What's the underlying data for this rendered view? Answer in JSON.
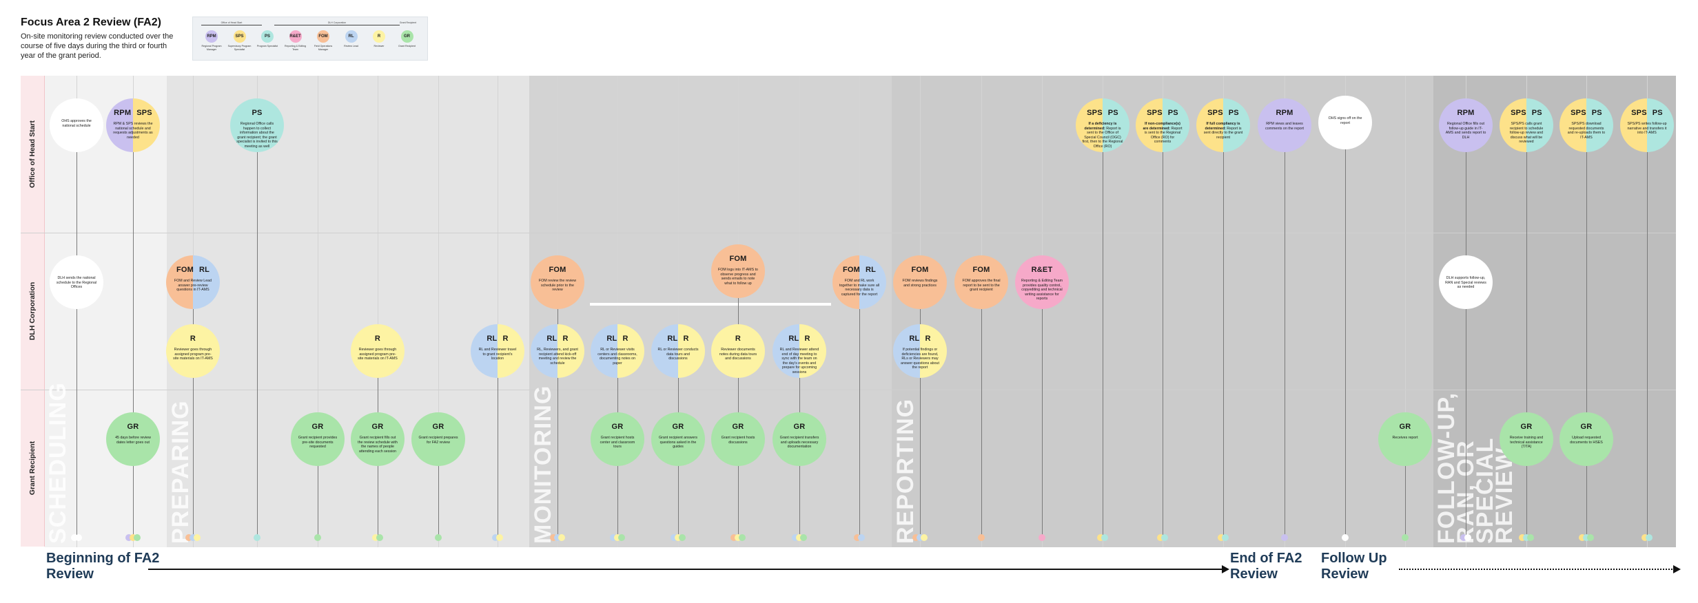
{
  "header": {
    "title": "Focus Area 2 Review (FA2)",
    "subtitle": "On-site monitoring review conducted over the course of five days during the third or fourth year of the grant period."
  },
  "legend": {
    "groups": [
      "Office of Head Start",
      "DLH Corporation",
      "Grant Recipient"
    ],
    "items": [
      {
        "tag": "RPM",
        "color": "#c9c0ef",
        "label": "Regional Program Manager"
      },
      {
        "tag": "SPS",
        "color": "#fde28a",
        "label": "Supervisory Program Specialist"
      },
      {
        "tag": "PS",
        "color": "#aee6df",
        "label": "Program Specialist"
      },
      {
        "tag": "R&ET",
        "color": "#f6a9c9",
        "label": "Reporting & Editing Team"
      },
      {
        "tag": "FOM",
        "color": "#f8bf96",
        "label": "Field Operations Manager"
      },
      {
        "tag": "RL",
        "color": "#bcd4f1",
        "label": "Review Lead"
      },
      {
        "tag": "R",
        "color": "#fdf3a3",
        "label": "Reviewer"
      },
      {
        "tag": "GR",
        "color": "#a9e4a9",
        "label": "Grant Recipient"
      }
    ]
  },
  "colors": {
    "RPM": "#c9c0ef",
    "SPS": "#fde28a",
    "PS": "#aee6df",
    "R&ET": "#f6a9c9",
    "FOM": "#f8bf96",
    "RL": "#bcd4f1",
    "R": "#fdf3a3",
    "GR": "#a9e4a9",
    "WHITE": "#ffffff"
  },
  "lanes": [
    "Office of Head Start",
    "DLH Corporation",
    "Grant Recipient"
  ],
  "phases": [
    {
      "label": "SCHEDULING",
      "bg": "#f2f2f2"
    },
    {
      "label": "PREPARING",
      "bg": "#e4e4e4"
    },
    {
      "label": "MONITORING",
      "bg": "#d3d3d3"
    },
    {
      "label": "REPORTING",
      "bg": "#cbcbcb"
    },
    {
      "label": "FOLLOW-UP, RAN, OR SPECIAL REVIEW",
      "bg": "#bdbdbd"
    }
  ],
  "nodes": [
    {
      "lane": 0,
      "col": 0,
      "roles": [],
      "fill": "WHITE",
      "text": "OHS approves the national schedule"
    },
    {
      "lane": 1,
      "col": 0,
      "roles": [],
      "fill": "WHITE",
      "text": "DLH sends the national schedule to the Regional Offices"
    },
    {
      "lane": 0,
      "col": 1,
      "roles": [
        "RPM",
        "SPS"
      ],
      "text": "RPM & SPS reviews the national schedule and requests adjustments as needed"
    },
    {
      "lane": 2,
      "col": 1,
      "roles": [
        "GR"
      ],
      "text": "45 days before review dates letter goes out"
    },
    {
      "lane": 1,
      "col": 2,
      "roles": [
        "FOM",
        "RL"
      ],
      "text": "FOM and Review Lead answer pre-review questions in IT-AMS"
    },
    {
      "lane": 1.5,
      "col": 2,
      "roles": [
        "R"
      ],
      "text": "Reviewer goes through assigned program pre-site materials on IT-AMS"
    },
    {
      "lane": 0,
      "col": 3,
      "roles": [
        "PS"
      ],
      "text": "Regional Office calls happen to collect information about the grant recipient; the grant specialist is invited to this meeting as well"
    },
    {
      "lane": 2,
      "col": 4,
      "roles": [
        "GR"
      ],
      "text": "Grant recipient provides pre-site documents requested"
    },
    {
      "lane": 1.5,
      "col": 5,
      "roles": [
        "R"
      ],
      "text": "Reviewer goes through assigned program pre-site materials on IT-AMS"
    },
    {
      "lane": 2,
      "col": 5,
      "roles": [
        "GR"
      ],
      "text": "Grant recipient fills out the review schedule with the names of people attending each session"
    },
    {
      "lane": 2,
      "col": 6,
      "roles": [
        "GR"
      ],
      "text": "Grant recipient prepares for FA2 review"
    },
    {
      "lane": 1.5,
      "col": 7,
      "roles": [
        "RL",
        "R"
      ],
      "text": "RL and Reviewer travel to grant recipient's location"
    },
    {
      "lane": 1,
      "col": 8,
      "roles": [
        "FOM"
      ],
      "text": "FOM review the review schedule prior to the review"
    },
    {
      "lane": 1.5,
      "col": 8,
      "roles": [
        "RL",
        "R"
      ],
      "text": "RL, Reviewers, and grant recipient attend kick-off meeting and review the schedule"
    },
    {
      "lane": 1.5,
      "col": 9,
      "roles": [
        "RL",
        "R"
      ],
      "text": "RL or Reviewer visits centers and classrooms, documenting notes on paper"
    },
    {
      "lane": 2,
      "col": 9,
      "roles": [
        "GR"
      ],
      "text": "Grant recipient hosts center and classroom tours"
    },
    {
      "lane": 1.5,
      "col": 10,
      "roles": [
        "RL",
        "R"
      ],
      "text": "RL or Reviewer conducts data tours and discussions"
    },
    {
      "lane": 2,
      "col": 10,
      "roles": [
        "GR"
      ],
      "text": "Grant recipient answers questions asked in the guides"
    },
    {
      "lane": 0.9,
      "col": 11,
      "roles": [
        "FOM"
      ],
      "text": "FOM logs into IT-AMS to observe progress and sends emails to note what to follow up"
    },
    {
      "lane": 1.5,
      "col": 11,
      "roles": [
        "R"
      ],
      "text": "Reviewer documents notes during data tours and discussions"
    },
    {
      "lane": 2,
      "col": 11,
      "roles": [
        "GR"
      ],
      "text": "Grant recipient hosts discussions"
    },
    {
      "lane": 1.5,
      "col": 12,
      "roles": [
        "RL",
        "R"
      ],
      "text": "RL and Reviewer attend end of day meeting to sync with the team on the day's events and prepare for upcoming sessions"
    },
    {
      "lane": 2,
      "col": 12,
      "roles": [
        "GR"
      ],
      "text": "Grant recipient transfers and uploads necessary documentation"
    },
    {
      "lane": 1,
      "col": 13,
      "roles": [
        "FOM",
        "RL"
      ],
      "text": "FOM and RL work together to make sure all necessary data is captured for the report"
    },
    {
      "lane": 1,
      "col": 14,
      "roles": [
        "FOM"
      ],
      "text": "FOM reviews findings and strong practices"
    },
    {
      "lane": 1.5,
      "col": 14,
      "roles": [
        "RL",
        "R"
      ],
      "text": "If potential findings or deficiencies are found, RLs or Reviewers may answer questions about the report"
    },
    {
      "lane": 1,
      "col": 15,
      "roles": [
        "FOM"
      ],
      "text": "FOM approves the final report to be sent to the grant recipient"
    },
    {
      "lane": 1,
      "col": 16,
      "roles": [
        "R&ET"
      ],
      "text": "Reporting & Editing Team provides quality control, copyediting and technical writing assistance for reports"
    },
    {
      "lane": 0,
      "col": 17,
      "roles": [
        "SPS",
        "PS"
      ],
      "bold": "If a deficiency is determined:",
      "text": "Report is sent to the Office of Special Council (OGC) first, then to the Regional Office (RO)"
    },
    {
      "lane": 0,
      "col": 18,
      "roles": [
        "SPS",
        "PS"
      ],
      "bold": "If non-compliance(s) are determined:",
      "text": "Report is sent to the Regional Office (RO) for comments"
    },
    {
      "lane": 0,
      "col": 19,
      "roles": [
        "SPS",
        "PS"
      ],
      "bold": "If full compliancy is determined:",
      "text": "Report is sent directly to the grant recipient"
    },
    {
      "lane": 0,
      "col": 20,
      "roles": [
        "RPM"
      ],
      "text": "RPM views and leaves comments on the report"
    },
    {
      "lane": -0.2,
      "col": 21,
      "roles": [],
      "fill": "WHITE",
      "text": "OHS signs off on the report"
    },
    {
      "lane": 2,
      "col": 22,
      "roles": [
        "GR"
      ],
      "text": "Receives report"
    },
    {
      "lane": 0,
      "col": 23,
      "roles": [
        "RPM"
      ],
      "text": "Regional Office fills out follow-up guide in IT-AMS and sends report to DLH"
    },
    {
      "lane": 1,
      "col": 23,
      "roles": [],
      "fill": "WHITE",
      "text": "DLH supports follow-up, RAN and Special reviews as needed"
    },
    {
      "lane": 0,
      "col": 24,
      "roles": [
        "SPS",
        "PS"
      ],
      "text": "SPS/PS calls grant recipient to schedule follow-up review and discuss what will be reviewed"
    },
    {
      "lane": 2,
      "col": 24,
      "roles": [
        "GR"
      ],
      "text": "Receive training and technical assistance (T/TA)"
    },
    {
      "lane": 0,
      "col": 25,
      "roles": [
        "SPS",
        "PS"
      ],
      "text": "SPS/PS download requested documents and re-uploads them to IT-AMS"
    },
    {
      "lane": 2,
      "col": 25,
      "roles": [
        "GR"
      ],
      "text": "Upload requested documents to HSES"
    },
    {
      "lane": 0,
      "col": 26,
      "roles": [
        "SPS",
        "PS"
      ],
      "text": "SPS/PS writes follow-up narrative and transfers it into IT-AMS"
    }
  ],
  "footer": {
    "start": "Beginning of FA2 Review",
    "end": "End of FA2 Review",
    "follow": "Follow Up Review"
  }
}
